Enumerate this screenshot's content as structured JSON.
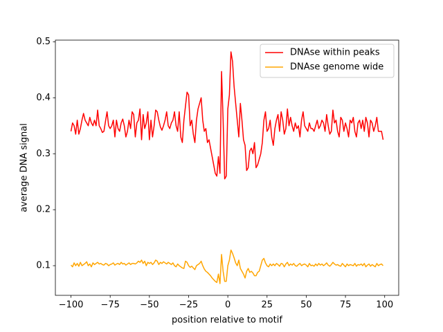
{
  "chart_data": {
    "type": "line",
    "xlabel": "position relative to motif",
    "ylabel": "average DNA signal",
    "x": [
      -100,
      -99,
      -98,
      -97,
      -96,
      -95,
      -94,
      -93,
      -92,
      -91,
      -90,
      -89,
      -88,
      -87,
      -86,
      -85,
      -84,
      -83,
      -82,
      -81,
      -80,
      -79,
      -78,
      -77,
      -76,
      -75,
      -74,
      -73,
      -72,
      -71,
      -70,
      -69,
      -68,
      -67,
      -66,
      -65,
      -64,
      -63,
      -62,
      -61,
      -60,
      -59,
      -58,
      -57,
      -56,
      -55,
      -54,
      -53,
      -52,
      -51,
      -50,
      -49,
      -48,
      -47,
      -46,
      -45,
      -44,
      -43,
      -42,
      -41,
      -40,
      -39,
      -38,
      -37,
      -36,
      -35,
      -34,
      -33,
      -32,
      -31,
      -30,
      -29,
      -28,
      -27,
      -26,
      -25,
      -24,
      -23,
      -22,
      -21,
      -20,
      -19,
      -18,
      -17,
      -16,
      -15,
      -14,
      -13,
      -12,
      -11,
      -10,
      -9,
      -8,
      -7,
      -6,
      -5,
      -4,
      -3,
      -2,
      -1,
      0,
      1,
      2,
      3,
      4,
      5,
      6,
      7,
      8,
      9,
      10,
      11,
      12,
      13,
      14,
      15,
      16,
      17,
      18,
      19,
      20,
      21,
      22,
      23,
      24,
      25,
      26,
      27,
      28,
      29,
      30,
      31,
      32,
      33,
      34,
      35,
      36,
      37,
      38,
      39,
      40,
      41,
      42,
      43,
      44,
      45,
      46,
      47,
      48,
      49,
      50,
      51,
      52,
      53,
      54,
      55,
      56,
      57,
      58,
      59,
      60,
      61,
      62,
      63,
      64,
      65,
      66,
      67,
      68,
      69,
      70,
      71,
      72,
      73,
      74,
      75,
      76,
      77,
      78,
      79,
      80,
      81,
      82,
      83,
      84,
      85,
      86,
      87,
      88,
      89,
      90,
      91,
      92,
      93,
      94,
      95,
      96,
      97,
      98,
      99
    ],
    "series": [
      {
        "name": "DNAse within peaks",
        "color": "#ff0000",
        "values": [
          0.34,
          0.355,
          0.35,
          0.335,
          0.36,
          0.335,
          0.345,
          0.36,
          0.372,
          0.36,
          0.355,
          0.35,
          0.365,
          0.355,
          0.35,
          0.36,
          0.35,
          0.378,
          0.35,
          0.345,
          0.338,
          0.34,
          0.358,
          0.375,
          0.35,
          0.345,
          0.35,
          0.36,
          0.33,
          0.36,
          0.345,
          0.34,
          0.355,
          0.362,
          0.35,
          0.33,
          0.34,
          0.36,
          0.345,
          0.375,
          0.37,
          0.33,
          0.355,
          0.36,
          0.38,
          0.325,
          0.37,
          0.345,
          0.355,
          0.375,
          0.325,
          0.36,
          0.33,
          0.35,
          0.378,
          0.375,
          0.36,
          0.348,
          0.342,
          0.35,
          0.36,
          0.375,
          0.35,
          0.345,
          0.355,
          0.36,
          0.375,
          0.35,
          0.34,
          0.375,
          0.33,
          0.32,
          0.36,
          0.385,
          0.41,
          0.405,
          0.35,
          0.36,
          0.335,
          0.32,
          0.36,
          0.38,
          0.39,
          0.4,
          0.36,
          0.34,
          0.345,
          0.32,
          0.325,
          0.31,
          0.295,
          0.28,
          0.265,
          0.26,
          0.295,
          0.265,
          0.447,
          0.36,
          0.255,
          0.26,
          0.38,
          0.405,
          0.482,
          0.465,
          0.42,
          0.39,
          0.36,
          0.33,
          0.39,
          0.36,
          0.325,
          0.315,
          0.27,
          0.275,
          0.305,
          0.31,
          0.3,
          0.32,
          0.275,
          0.28,
          0.29,
          0.3,
          0.32,
          0.36,
          0.375,
          0.34,
          0.345,
          0.36,
          0.33,
          0.315,
          0.345,
          0.36,
          0.37,
          0.34,
          0.375,
          0.36,
          0.335,
          0.345,
          0.38,
          0.35,
          0.365,
          0.35,
          0.34,
          0.355,
          0.345,
          0.35,
          0.33,
          0.36,
          0.375,
          0.35,
          0.345,
          0.34,
          0.355,
          0.345,
          0.345,
          0.34,
          0.35,
          0.36,
          0.345,
          0.35,
          0.36,
          0.355,
          0.34,
          0.37,
          0.35,
          0.335,
          0.34,
          0.378,
          0.355,
          0.36,
          0.34,
          0.33,
          0.365,
          0.36,
          0.34,
          0.355,
          0.345,
          0.33,
          0.36,
          0.355,
          0.365,
          0.34,
          0.33,
          0.355,
          0.36,
          0.345,
          0.36,
          0.34,
          0.365,
          0.355,
          0.33,
          0.36,
          0.355,
          0.34,
          0.35,
          0.365,
          0.34,
          0.34,
          0.34,
          0.325
        ]
      },
      {
        "name": "DNAse genome wide",
        "color": "#ffa500",
        "values": [
          0.101,
          0.098,
          0.105,
          0.1,
          0.104,
          0.099,
          0.106,
          0.1,
          0.102,
          0.104,
          0.107,
          0.1,
          0.103,
          0.098,
          0.105,
          0.102,
          0.104,
          0.106,
          0.103,
          0.104,
          0.102,
          0.101,
          0.104,
          0.103,
          0.1,
          0.102,
          0.103,
          0.105,
          0.101,
          0.103,
          0.104,
          0.102,
          0.106,
          0.103,
          0.104,
          0.101,
          0.103,
          0.105,
          0.102,
          0.104,
          0.104,
          0.103,
          0.105,
          0.108,
          0.106,
          0.11,
          0.104,
          0.108,
          0.1,
          0.106,
          0.104,
          0.106,
          0.102,
          0.105,
          0.11,
          0.108,
          0.102,
          0.106,
          0.104,
          0.107,
          0.105,
          0.103,
          0.106,
          0.104,
          0.102,
          0.105,
          0.1,
          0.098,
          0.103,
          0.1,
          0.098,
          0.096,
          0.095,
          0.108,
          0.106,
          0.1,
          0.097,
          0.099,
          0.096,
          0.093,
          0.1,
          0.102,
          0.104,
          0.108,
          0.1,
          0.094,
          0.09,
          0.088,
          0.085,
          0.082,
          0.078,
          0.075,
          0.072,
          0.07,
          0.085,
          0.068,
          0.12,
          0.09,
          0.072,
          0.072,
          0.1,
          0.11,
          0.128,
          0.122,
          0.114,
          0.105,
          0.1,
          0.11,
          0.095,
          0.09,
          0.085,
          0.078,
          0.09,
          0.095,
          0.088,
          0.09,
          0.087,
          0.082,
          0.082,
          0.088,
          0.09,
          0.1,
          0.11,
          0.113,
          0.105,
          0.1,
          0.098,
          0.103,
          0.1,
          0.103,
          0.1,
          0.104,
          0.102,
          0.099,
          0.104,
          0.103,
          0.098,
          0.103,
          0.106,
          0.1,
          0.103,
          0.101,
          0.104,
          0.1,
          0.099,
          0.102,
          0.104,
          0.1,
          0.102,
          0.103,
          0.101,
          0.098,
          0.104,
          0.1,
          0.101,
          0.099,
          0.103,
          0.1,
          0.104,
          0.101,
          0.103,
          0.1,
          0.102,
          0.105,
          0.101,
          0.099,
          0.102,
          0.106,
          0.103,
          0.101,
          0.102,
          0.1,
          0.099,
          0.104,
          0.101,
          0.098,
          0.103,
          0.1,
          0.102,
          0.101,
          0.1,
          0.104,
          0.099,
          0.102,
          0.101,
          0.103,
          0.1,
          0.104,
          0.098,
          0.101,
          0.103,
          0.099,
          0.102,
          0.1,
          0.098,
          0.104,
          0.1,
          0.102,
          0.103,
          0.1
        ]
      }
    ],
    "xlim": [
      -109.95,
      108.95
    ],
    "ylim": [
      0.047,
      0.503
    ],
    "xticks": [
      {
        "value": -100,
        "label": "−100"
      },
      {
        "value": -75,
        "label": "−75"
      },
      {
        "value": -50,
        "label": "−50"
      },
      {
        "value": -25,
        "label": "−25"
      },
      0,
      25,
      50,
      75,
      100
    ],
    "yticks": [
      0.1,
      0.2,
      0.3,
      0.4,
      0.5
    ],
    "grid": false,
    "legend": "upper right"
  }
}
